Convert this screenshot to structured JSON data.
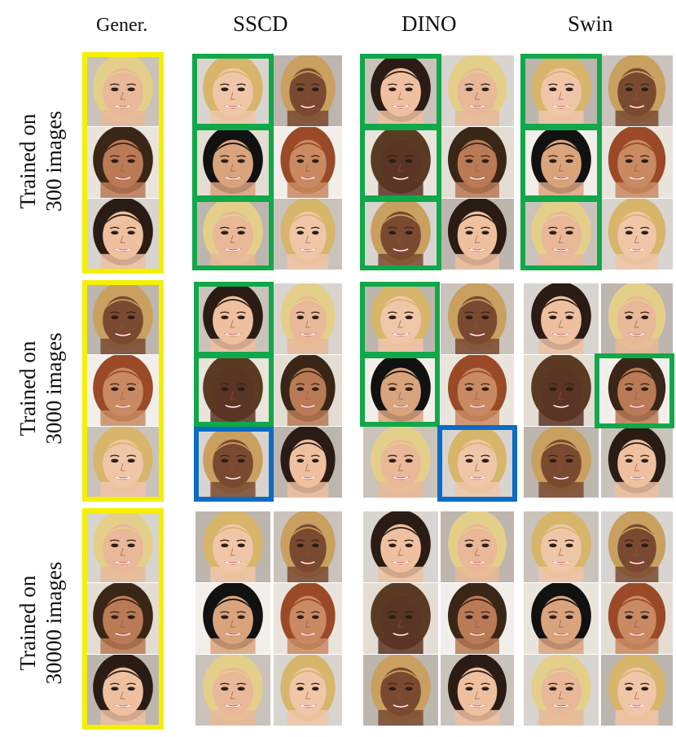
{
  "figure": {
    "columns": [
      "Gener.",
      "SSCD",
      "DINO",
      "Swin"
    ],
    "rows": [
      {
        "line1": "Trained on",
        "line2": "300 images"
      },
      {
        "line1": "Trained on",
        "line2": "3000 images"
      },
      {
        "line1": "Trained on",
        "line2": "30000 images"
      }
    ]
  },
  "colors": {
    "generated_frame": "#f4f000",
    "exact_match_frame": "#10a848",
    "near_match_frame": "#0a6cc6"
  }
}
